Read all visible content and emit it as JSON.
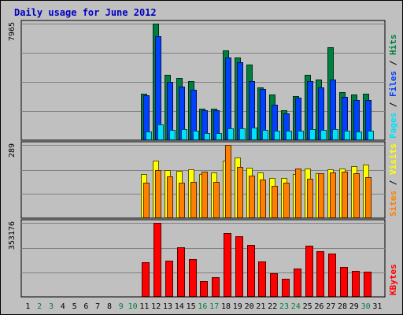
{
  "title": "Daily usage for June 2012",
  "colors": {
    "background": "#c0c0c0",
    "frame": "#000000",
    "title": "#0000c0",
    "hits": "#008040",
    "files": "#0040ff",
    "pages": "#00e0ff",
    "visits": "#ffff00",
    "sites": "#ff8000",
    "kbytes": "#ff0000",
    "weekend_label": "#008040",
    "weekday_label": "#000000"
  },
  "chart_data": [
    {
      "type": "bar",
      "name": "hits-files-pages",
      "legend": [
        "Pages",
        "Files",
        "Hits"
      ],
      "legend_separator": " / ",
      "y_max_label": "7965",
      "ylim": [
        0,
        7965
      ],
      "categories": [
        "1",
        "2",
        "3",
        "4",
        "5",
        "6",
        "7",
        "8",
        "9",
        "10",
        "11",
        "12",
        "13",
        "14",
        "15",
        "16",
        "17",
        "18",
        "19",
        "20",
        "21",
        "22",
        "23",
        "24",
        "25",
        "26",
        "27",
        "28",
        "29",
        "30",
        "31"
      ],
      "weekend_days": [
        "2",
        "3",
        "9",
        "10",
        "16",
        "17",
        "23",
        "24",
        "30"
      ],
      "series": [
        {
          "name": "Hits",
          "values": [
            0,
            0,
            0,
            0,
            0,
            0,
            0,
            0,
            0,
            0,
            3200,
            7965,
            4450,
            4230,
            4020,
            2150,
            2150,
            6150,
            5640,
            5150,
            3620,
            3140,
            2040,
            3030,
            4450,
            4130,
            6370,
            3290,
            3110,
            3200,
            0
          ]
        },
        {
          "name": "Files",
          "values": [
            0,
            0,
            0,
            0,
            0,
            0,
            0,
            0,
            0,
            0,
            3070,
            7100,
            4000,
            3680,
            3420,
            2050,
            2020,
            5640,
            5350,
            4020,
            3520,
            2420,
            1850,
            2930,
            4020,
            3620,
            4130,
            2970,
            2720,
            2750,
            0
          ]
        },
        {
          "name": "Pages",
          "values": [
            0,
            0,
            0,
            0,
            0,
            0,
            0,
            0,
            0,
            0,
            600,
            1100,
            720,
            740,
            640,
            480,
            470,
            800,
            830,
            840,
            720,
            630,
            640,
            660,
            740,
            710,
            740,
            620,
            580,
            640,
            0
          ]
        }
      ]
    },
    {
      "type": "bar",
      "name": "visits-sites",
      "legend": [
        "Sites",
        "Visits"
      ],
      "legend_separator": " / ",
      "y_max_label": "289",
      "ylim": [
        0,
        289
      ],
      "categories": [
        "1",
        "2",
        "3",
        "4",
        "5",
        "6",
        "7",
        "8",
        "9",
        "10",
        "11",
        "12",
        "13",
        "14",
        "15",
        "16",
        "17",
        "18",
        "19",
        "20",
        "21",
        "22",
        "23",
        "24",
        "25",
        "26",
        "27",
        "28",
        "29",
        "30",
        "31"
      ],
      "series": [
        {
          "name": "Visits",
          "values": [
            0,
            0,
            0,
            0,
            0,
            0,
            0,
            0,
            0,
            0,
            174,
            226,
            189,
            186,
            194,
            173,
            180,
            227,
            238,
            200,
            180,
            160,
            159,
            173,
            196,
            178,
            193,
            195,
            205,
            211,
            0
          ]
        },
        {
          "name": "Sites",
          "values": [
            0,
            0,
            0,
            0,
            0,
            0,
            0,
            0,
            0,
            0,
            139,
            190,
            164,
            139,
            143,
            182,
            144,
            289,
            201,
            169,
            151,
            128,
            140,
            197,
            156,
            176,
            181,
            182,
            177,
            162,
            0
          ]
        }
      ]
    },
    {
      "type": "bar",
      "name": "kbytes",
      "legend": [
        "KBytes"
      ],
      "y_max_label": "353176",
      "ylim": [
        0,
        353176
      ],
      "categories": [
        "1",
        "2",
        "3",
        "4",
        "5",
        "6",
        "7",
        "8",
        "9",
        "10",
        "11",
        "12",
        "13",
        "14",
        "15",
        "16",
        "17",
        "18",
        "19",
        "20",
        "21",
        "22",
        "23",
        "24",
        "25",
        "26",
        "27",
        "28",
        "29",
        "30",
        "31"
      ],
      "series": [
        {
          "name": "KBytes",
          "values": [
            0,
            0,
            0,
            0,
            0,
            0,
            0,
            0,
            0,
            0,
            166000,
            353176,
            174000,
            238000,
            179000,
            77000,
            94000,
            303000,
            289000,
            247000,
            168000,
            112000,
            85000,
            134000,
            245000,
            218000,
            205000,
            143000,
            125000,
            121000,
            0
          ]
        }
      ]
    }
  ]
}
